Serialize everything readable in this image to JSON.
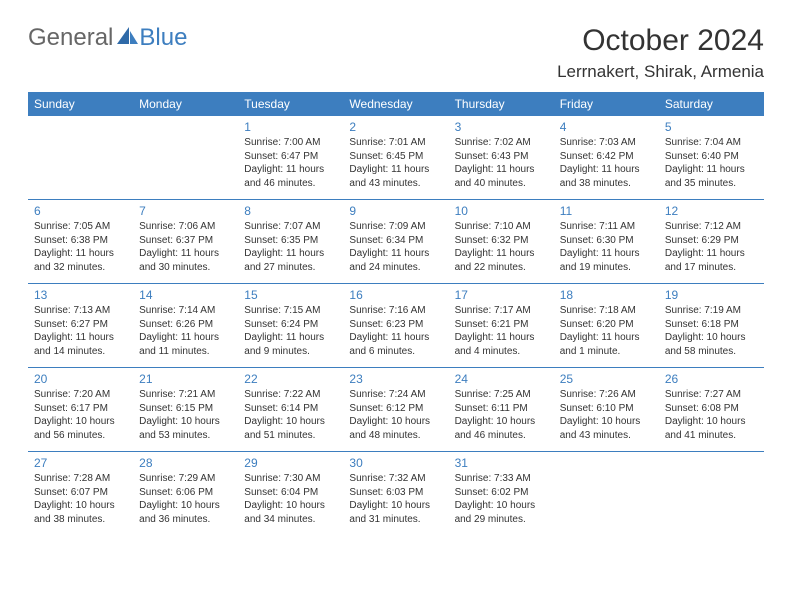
{
  "logo": {
    "text1": "General",
    "text2": "Blue"
  },
  "title": "October 2024",
  "location": "Lerrnakert, Shirak, Armenia",
  "colors": {
    "header_bg": "#3d7ebf",
    "header_text": "#ffffff",
    "day_num": "#3d7ebf",
    "text": "#333333",
    "rule": "#3d7ebf"
  },
  "dayHeaders": [
    "Sunday",
    "Monday",
    "Tuesday",
    "Wednesday",
    "Thursday",
    "Friday",
    "Saturday"
  ],
  "weeks": [
    [
      null,
      null,
      {
        "n": "1",
        "sr": "Sunrise: 7:00 AM",
        "ss": "Sunset: 6:47 PM",
        "d1": "Daylight: 11 hours",
        "d2": "and 46 minutes."
      },
      {
        "n": "2",
        "sr": "Sunrise: 7:01 AM",
        "ss": "Sunset: 6:45 PM",
        "d1": "Daylight: 11 hours",
        "d2": "and 43 minutes."
      },
      {
        "n": "3",
        "sr": "Sunrise: 7:02 AM",
        "ss": "Sunset: 6:43 PM",
        "d1": "Daylight: 11 hours",
        "d2": "and 40 minutes."
      },
      {
        "n": "4",
        "sr": "Sunrise: 7:03 AM",
        "ss": "Sunset: 6:42 PM",
        "d1": "Daylight: 11 hours",
        "d2": "and 38 minutes."
      },
      {
        "n": "5",
        "sr": "Sunrise: 7:04 AM",
        "ss": "Sunset: 6:40 PM",
        "d1": "Daylight: 11 hours",
        "d2": "and 35 minutes."
      }
    ],
    [
      {
        "n": "6",
        "sr": "Sunrise: 7:05 AM",
        "ss": "Sunset: 6:38 PM",
        "d1": "Daylight: 11 hours",
        "d2": "and 32 minutes."
      },
      {
        "n": "7",
        "sr": "Sunrise: 7:06 AM",
        "ss": "Sunset: 6:37 PM",
        "d1": "Daylight: 11 hours",
        "d2": "and 30 minutes."
      },
      {
        "n": "8",
        "sr": "Sunrise: 7:07 AM",
        "ss": "Sunset: 6:35 PM",
        "d1": "Daylight: 11 hours",
        "d2": "and 27 minutes."
      },
      {
        "n": "9",
        "sr": "Sunrise: 7:09 AM",
        "ss": "Sunset: 6:34 PM",
        "d1": "Daylight: 11 hours",
        "d2": "and 24 minutes."
      },
      {
        "n": "10",
        "sr": "Sunrise: 7:10 AM",
        "ss": "Sunset: 6:32 PM",
        "d1": "Daylight: 11 hours",
        "d2": "and 22 minutes."
      },
      {
        "n": "11",
        "sr": "Sunrise: 7:11 AM",
        "ss": "Sunset: 6:30 PM",
        "d1": "Daylight: 11 hours",
        "d2": "and 19 minutes."
      },
      {
        "n": "12",
        "sr": "Sunrise: 7:12 AM",
        "ss": "Sunset: 6:29 PM",
        "d1": "Daylight: 11 hours",
        "d2": "and 17 minutes."
      }
    ],
    [
      {
        "n": "13",
        "sr": "Sunrise: 7:13 AM",
        "ss": "Sunset: 6:27 PM",
        "d1": "Daylight: 11 hours",
        "d2": "and 14 minutes."
      },
      {
        "n": "14",
        "sr": "Sunrise: 7:14 AM",
        "ss": "Sunset: 6:26 PM",
        "d1": "Daylight: 11 hours",
        "d2": "and 11 minutes."
      },
      {
        "n": "15",
        "sr": "Sunrise: 7:15 AM",
        "ss": "Sunset: 6:24 PM",
        "d1": "Daylight: 11 hours",
        "d2": "and 9 minutes."
      },
      {
        "n": "16",
        "sr": "Sunrise: 7:16 AM",
        "ss": "Sunset: 6:23 PM",
        "d1": "Daylight: 11 hours",
        "d2": "and 6 minutes."
      },
      {
        "n": "17",
        "sr": "Sunrise: 7:17 AM",
        "ss": "Sunset: 6:21 PM",
        "d1": "Daylight: 11 hours",
        "d2": "and 4 minutes."
      },
      {
        "n": "18",
        "sr": "Sunrise: 7:18 AM",
        "ss": "Sunset: 6:20 PM",
        "d1": "Daylight: 11 hours",
        "d2": "and 1 minute."
      },
      {
        "n": "19",
        "sr": "Sunrise: 7:19 AM",
        "ss": "Sunset: 6:18 PM",
        "d1": "Daylight: 10 hours",
        "d2": "and 58 minutes."
      }
    ],
    [
      {
        "n": "20",
        "sr": "Sunrise: 7:20 AM",
        "ss": "Sunset: 6:17 PM",
        "d1": "Daylight: 10 hours",
        "d2": "and 56 minutes."
      },
      {
        "n": "21",
        "sr": "Sunrise: 7:21 AM",
        "ss": "Sunset: 6:15 PM",
        "d1": "Daylight: 10 hours",
        "d2": "and 53 minutes."
      },
      {
        "n": "22",
        "sr": "Sunrise: 7:22 AM",
        "ss": "Sunset: 6:14 PM",
        "d1": "Daylight: 10 hours",
        "d2": "and 51 minutes."
      },
      {
        "n": "23",
        "sr": "Sunrise: 7:24 AM",
        "ss": "Sunset: 6:12 PM",
        "d1": "Daylight: 10 hours",
        "d2": "and 48 minutes."
      },
      {
        "n": "24",
        "sr": "Sunrise: 7:25 AM",
        "ss": "Sunset: 6:11 PM",
        "d1": "Daylight: 10 hours",
        "d2": "and 46 minutes."
      },
      {
        "n": "25",
        "sr": "Sunrise: 7:26 AM",
        "ss": "Sunset: 6:10 PM",
        "d1": "Daylight: 10 hours",
        "d2": "and 43 minutes."
      },
      {
        "n": "26",
        "sr": "Sunrise: 7:27 AM",
        "ss": "Sunset: 6:08 PM",
        "d1": "Daylight: 10 hours",
        "d2": "and 41 minutes."
      }
    ],
    [
      {
        "n": "27",
        "sr": "Sunrise: 7:28 AM",
        "ss": "Sunset: 6:07 PM",
        "d1": "Daylight: 10 hours",
        "d2": "and 38 minutes."
      },
      {
        "n": "28",
        "sr": "Sunrise: 7:29 AM",
        "ss": "Sunset: 6:06 PM",
        "d1": "Daylight: 10 hours",
        "d2": "and 36 minutes."
      },
      {
        "n": "29",
        "sr": "Sunrise: 7:30 AM",
        "ss": "Sunset: 6:04 PM",
        "d1": "Daylight: 10 hours",
        "d2": "and 34 minutes."
      },
      {
        "n": "30",
        "sr": "Sunrise: 7:32 AM",
        "ss": "Sunset: 6:03 PM",
        "d1": "Daylight: 10 hours",
        "d2": "and 31 minutes."
      },
      {
        "n": "31",
        "sr": "Sunrise: 7:33 AM",
        "ss": "Sunset: 6:02 PM",
        "d1": "Daylight: 10 hours",
        "d2": "and 29 minutes."
      },
      null,
      null
    ]
  ]
}
